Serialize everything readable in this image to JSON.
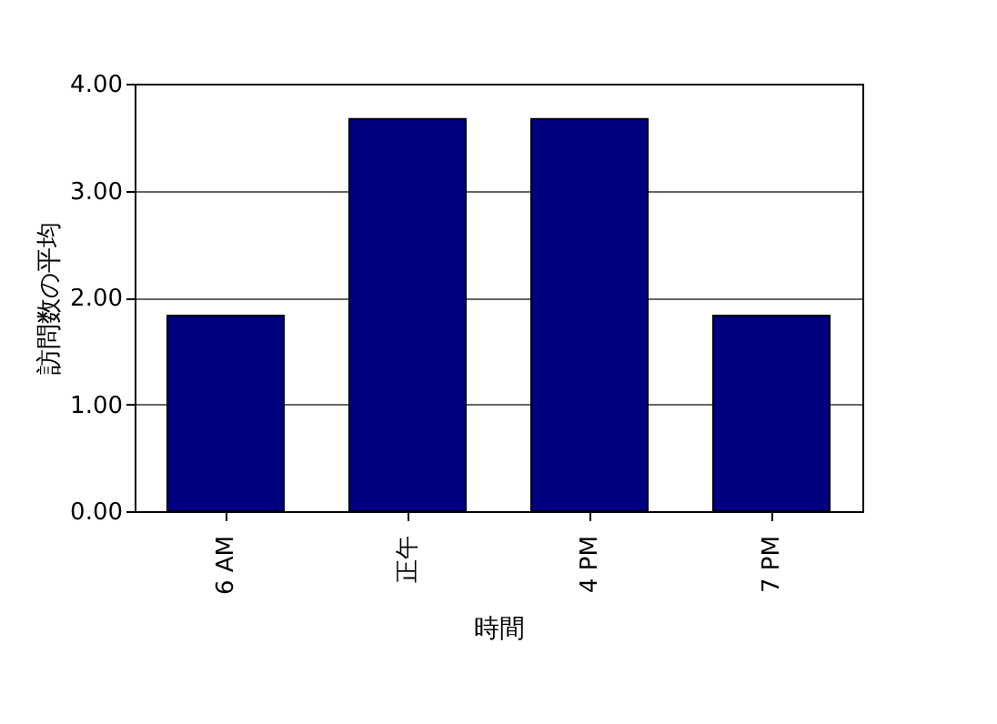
{
  "chart_data": {
    "type": "bar",
    "xlabel": "時間",
    "ylabel": "訪問数の平均",
    "categories": [
      "6 AM",
      "正午",
      "4 PM",
      "7 PM"
    ],
    "values": [
      1.83,
      3.67,
      3.67,
      1.83
    ],
    "color": "#000080",
    "ylim": [
      0,
      4
    ],
    "yticks": [
      {
        "value": 0,
        "label": "0.00"
      },
      {
        "value": 1,
        "label": "1.00"
      },
      {
        "value": 2,
        "label": "2.00"
      },
      {
        "value": 3,
        "label": "3.00"
      },
      {
        "value": 4,
        "label": "4.00"
      }
    ],
    "grid": "y"
  }
}
